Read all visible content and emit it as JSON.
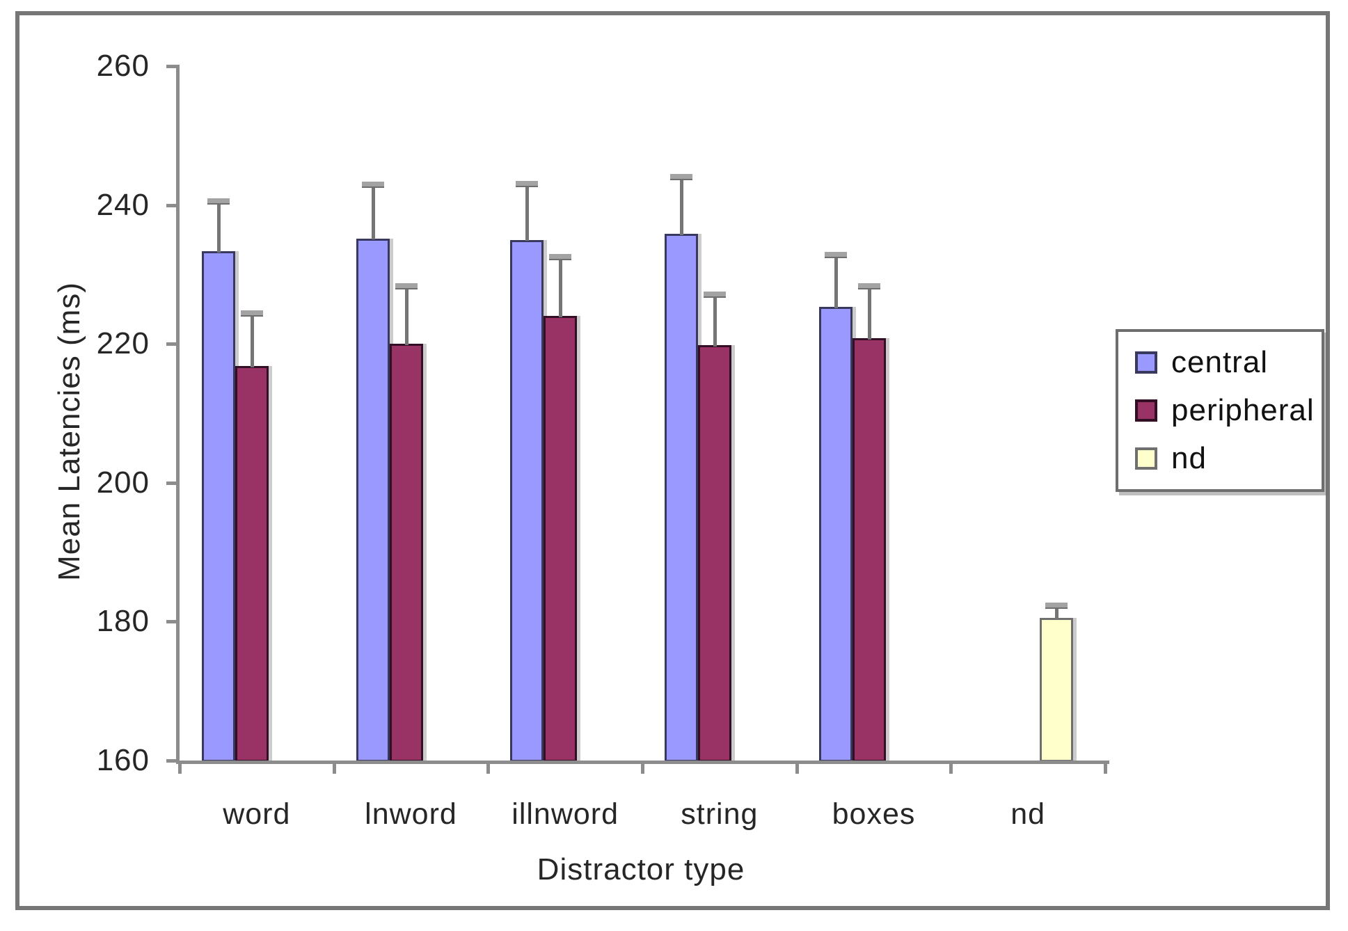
{
  "figure": {
    "background": "#ffffff",
    "frame_border_color": "#767676"
  },
  "chart_data": {
    "type": "bar",
    "title": "",
    "xlabel": "Distractor type",
    "ylabel": "Mean Latencies (ms)",
    "ylim": [
      160,
      260
    ],
    "yticks": [
      160,
      180,
      200,
      220,
      240,
      260
    ],
    "grid": false,
    "legend_position": "right",
    "categories": [
      "word",
      "lnword",
      "illnword",
      "string",
      "boxes",
      "nd"
    ],
    "series": [
      {
        "name": "central",
        "color": "#9999FF",
        "border_color": "#39395f",
        "values": [
          233.3,
          235.2,
          235.0,
          235.9,
          225.3,
          null
        ],
        "error_upper": [
          7.5,
          8.0,
          8.3,
          8.4,
          7.7,
          null
        ]
      },
      {
        "name": "peripheral",
        "color": "#993366",
        "border_color": "#330f26",
        "values": [
          216.8,
          220.0,
          224.0,
          219.8,
          220.8,
          null
        ],
        "error_upper": [
          7.8,
          8.5,
          8.7,
          7.5,
          7.7,
          null
        ]
      },
      {
        "name": "nd",
        "color": "#FFFFCC",
        "border_color": "#6f6f6f",
        "values": [
          null,
          null,
          null,
          null,
          null,
          180.5
        ],
        "error_upper": [
          null,
          null,
          null,
          null,
          null,
          2.0
        ]
      }
    ],
    "axis_color": "#8c8c8c",
    "error_bar_color": "#757575",
    "error_cap_color": "#a3a3a3",
    "text_color": "#262626"
  }
}
